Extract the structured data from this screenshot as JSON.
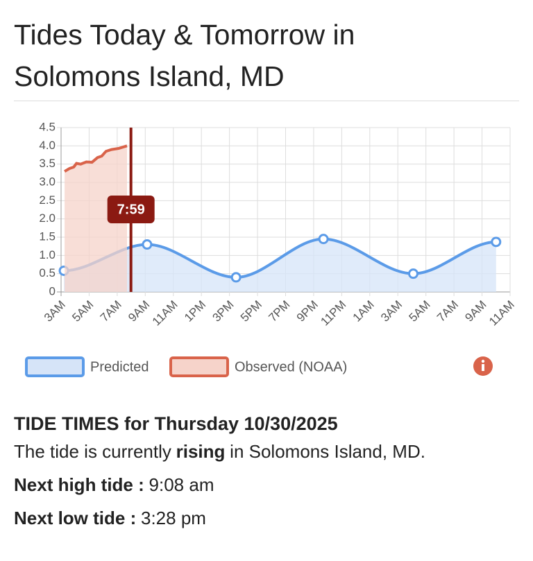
{
  "header": {
    "title": "Tides Today & Tomorrow in Solomons Island, MD"
  },
  "chart_data": {
    "type": "line",
    "xlim": [
      0,
      32
    ],
    "xticks": [
      {
        "value": 0,
        "label": "3AM"
      },
      {
        "value": 2,
        "label": "5AM"
      },
      {
        "value": 4,
        "label": "7AM"
      },
      {
        "value": 6,
        "label": "9AM"
      },
      {
        "value": 8,
        "label": "11AM"
      },
      {
        "value": 10,
        "label": "1PM"
      },
      {
        "value": 12,
        "label": "3PM"
      },
      {
        "value": 14,
        "label": "5PM"
      },
      {
        "value": 16,
        "label": "7PM"
      },
      {
        "value": 18,
        "label": "9PM"
      },
      {
        "value": 20,
        "label": "11PM"
      },
      {
        "value": 22,
        "label": "1AM"
      },
      {
        "value": 24,
        "label": "3AM"
      },
      {
        "value": 26,
        "label": "5AM"
      },
      {
        "value": 28,
        "label": "7AM"
      },
      {
        "value": 30,
        "label": "9AM"
      },
      {
        "value": 32,
        "label": "11AM"
      }
    ],
    "ylim": [
      0,
      4.5
    ],
    "yticks": [
      0,
      0.5,
      {
        "value": 1,
        "label": "1.0"
      },
      1.5,
      {
        "value": 2,
        "label": "2.0"
      },
      2.5,
      {
        "value": 3,
        "label": "3.0"
      },
      3.5,
      {
        "value": 4,
        "label": "4.0"
      },
      4.5
    ],
    "grid": true,
    "series": [
      {
        "name": "Predicted",
        "color": "#5b9be8",
        "fill": "#d6e4f8",
        "x": [
          0.2,
          6.13,
          12.47,
          18.7,
          25.1,
          31.0
        ],
        "values": [
          0.58,
          1.3,
          0.4,
          1.45,
          0.5,
          1.37
        ]
      },
      {
        "name": "Observed (NOAA)",
        "color": "#d9634a",
        "fill": "#f6d3ca",
        "x": [
          0.25,
          0.6,
          0.9,
          1.1,
          1.4,
          1.8,
          2.2,
          2.6,
          2.9,
          3.2,
          3.6,
          4.1,
          4.7
        ],
        "values": [
          3.3,
          3.38,
          3.42,
          3.52,
          3.5,
          3.56,
          3.55,
          3.68,
          3.72,
          3.85,
          3.9,
          3.93,
          4.0
        ]
      }
    ],
    "marker": {
      "x": 4.98,
      "label": "7:59",
      "color": "#8b1a12"
    }
  },
  "tide_times": {
    "heading": "TIDE TIMES for Thursday 10/30/2025",
    "status": {
      "prefix": "The tide is currently",
      "state": "rising",
      "suffix": "in Solomons Island, MD."
    },
    "next_high": {
      "label": "Next high tide :",
      "time": "9:08 am"
    },
    "next_low": {
      "label": "Next low tide :",
      "time": "3:28 pm"
    }
  }
}
